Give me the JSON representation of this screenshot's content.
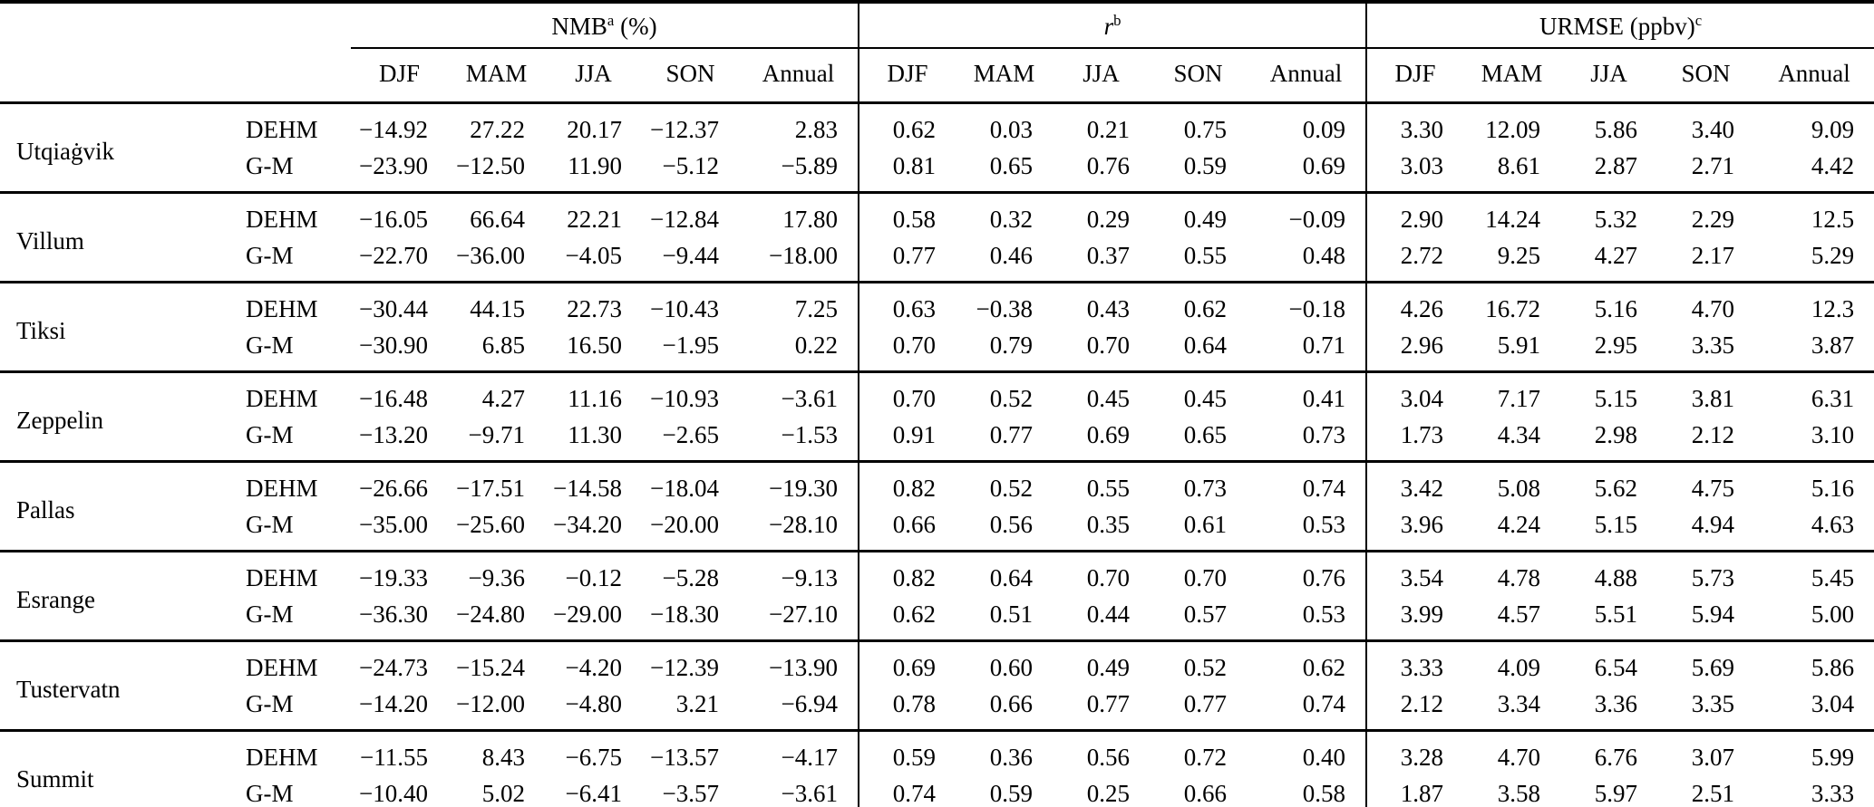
{
  "table": {
    "groups": [
      {
        "text": "NMB",
        "sup": "a",
        "suffix": " (%)"
      },
      {
        "text": "r",
        "sup": "b",
        "suffix": ""
      },
      {
        "text": "URMSE (ppbv)",
        "sup": "c",
        "suffix": ""
      }
    ],
    "seasons": [
      "DJF",
      "MAM",
      "JJA",
      "SON",
      "Annual"
    ],
    "stations": [
      {
        "name": "Utqiaġvik",
        "models": [
          {
            "name": "DEHM",
            "nmb": [
              "−14.92",
              "27.22",
              "20.17",
              "−12.37",
              "2.83"
            ],
            "r": [
              "0.62",
              "0.03",
              "0.21",
              "0.75",
              "0.09"
            ],
            "urmse": [
              "3.30",
              "12.09",
              "5.86",
              "3.40",
              "9.09"
            ]
          },
          {
            "name": "G-M",
            "nmb": [
              "−23.90",
              "−12.50",
              "11.90",
              "−5.12",
              "−5.89"
            ],
            "r": [
              "0.81",
              "0.65",
              "0.76",
              "0.59",
              "0.69"
            ],
            "urmse": [
              "3.03",
              "8.61",
              "2.87",
              "2.71",
              "4.42"
            ]
          }
        ]
      },
      {
        "name": "Villum",
        "models": [
          {
            "name": "DEHM",
            "nmb": [
              "−16.05",
              "66.64",
              "22.21",
              "−12.84",
              "17.80"
            ],
            "r": [
              "0.58",
              "0.32",
              "0.29",
              "0.49",
              "−0.09"
            ],
            "urmse": [
              "2.90",
              "14.24",
              "5.32",
              "2.29",
              "12.5"
            ]
          },
          {
            "name": "G-M",
            "nmb": [
              "−22.70",
              "−36.00",
              "−4.05",
              "−9.44",
              "−18.00"
            ],
            "r": [
              "0.77",
              "0.46",
              "0.37",
              "0.55",
              "0.48"
            ],
            "urmse": [
              "2.72",
              "9.25",
              "4.27",
              "2.17",
              "5.29"
            ]
          }
        ]
      },
      {
        "name": "Tiksi",
        "models": [
          {
            "name": "DEHM",
            "nmb": [
              "−30.44",
              "44.15",
              "22.73",
              "−10.43",
              "7.25"
            ],
            "r": [
              "0.63",
              "−0.38",
              "0.43",
              "0.62",
              "−0.18"
            ],
            "urmse": [
              "4.26",
              "16.72",
              "5.16",
              "4.70",
              "12.3"
            ]
          },
          {
            "name": "G-M",
            "nmb": [
              "−30.90",
              "6.85",
              "16.50",
              "−1.95",
              "0.22"
            ],
            "r": [
              "0.70",
              "0.79",
              "0.70",
              "0.64",
              "0.71"
            ],
            "urmse": [
              "2.96",
              "5.91",
              "2.95",
              "3.35",
              "3.87"
            ]
          }
        ]
      },
      {
        "name": "Zeppelin",
        "models": [
          {
            "name": "DEHM",
            "nmb": [
              "−16.48",
              "4.27",
              "11.16",
              "−10.93",
              "−3.61"
            ],
            "r": [
              "0.70",
              "0.52",
              "0.45",
              "0.45",
              "0.41"
            ],
            "urmse": [
              "3.04",
              "7.17",
              "5.15",
              "3.81",
              "6.31"
            ]
          },
          {
            "name": "G-M",
            "nmb": [
              "−13.20",
              "−9.71",
              "11.30",
              "−2.65",
              "−1.53"
            ],
            "r": [
              "0.91",
              "0.77",
              "0.69",
              "0.65",
              "0.73"
            ],
            "urmse": [
              "1.73",
              "4.34",
              "2.98",
              "2.12",
              "3.10"
            ]
          }
        ]
      },
      {
        "name": "Pallas",
        "models": [
          {
            "name": "DEHM",
            "nmb": [
              "−26.66",
              "−17.51",
              "−14.58",
              "−18.04",
              "−19.30"
            ],
            "r": [
              "0.82",
              "0.52",
              "0.55",
              "0.73",
              "0.74"
            ],
            "urmse": [
              "3.42",
              "5.08",
              "5.62",
              "4.75",
              "5.16"
            ]
          },
          {
            "name": "G-M",
            "nmb": [
              "−35.00",
              "−25.60",
              "−34.20",
              "−20.00",
              "−28.10"
            ],
            "r": [
              "0.66",
              "0.56",
              "0.35",
              "0.61",
              "0.53"
            ],
            "urmse": [
              "3.96",
              "4.24",
              "5.15",
              "4.94",
              "4.63"
            ]
          }
        ]
      },
      {
        "name": "Esrange",
        "models": [
          {
            "name": "DEHM",
            "nmb": [
              "−19.33",
              "−9.36",
              "−0.12",
              "−5.28",
              "−9.13"
            ],
            "r": [
              "0.82",
              "0.64",
              "0.70",
              "0.70",
              "0.76"
            ],
            "urmse": [
              "3.54",
              "4.78",
              "4.88",
              "5.73",
              "5.45"
            ]
          },
          {
            "name": "G-M",
            "nmb": [
              "−36.30",
              "−24.80",
              "−29.00",
              "−18.30",
              "−27.10"
            ],
            "r": [
              "0.62",
              "0.51",
              "0.44",
              "0.57",
              "0.53"
            ],
            "urmse": [
              "3.99",
              "4.57",
              "5.51",
              "5.94",
              "5.00"
            ]
          }
        ]
      },
      {
        "name": "Tustervatn",
        "models": [
          {
            "name": "DEHM",
            "nmb": [
              "−24.73",
              "−15.24",
              "−4.20",
              "−12.39",
              "−13.90"
            ],
            "r": [
              "0.69",
              "0.60",
              "0.49",
              "0.52",
              "0.62"
            ],
            "urmse": [
              "3.33",
              "4.09",
              "6.54",
              "5.69",
              "5.86"
            ]
          },
          {
            "name": "G-M",
            "nmb": [
              "−14.20",
              "−12.00",
              "−4.80",
              "3.21",
              "−6.94"
            ],
            "r": [
              "0.78",
              "0.66",
              "0.77",
              "0.77",
              "0.74"
            ],
            "urmse": [
              "2.12",
              "3.34",
              "3.36",
              "3.35",
              "3.04"
            ]
          }
        ]
      },
      {
        "name": "Summit",
        "models": [
          {
            "name": "DEHM",
            "nmb": [
              "−11.55",
              "8.43",
              "−6.75",
              "−13.57",
              "−4.17"
            ],
            "r": [
              "0.59",
              "0.36",
              "0.56",
              "0.72",
              "0.40"
            ],
            "urmse": [
              "3.28",
              "4.70",
              "6.76",
              "3.07",
              "5.99"
            ]
          },
          {
            "name": "G-M",
            "nmb": [
              "−10.40",
              "5.02",
              "−6.41",
              "−3.57",
              "−3.61"
            ],
            "r": [
              "0.74",
              "0.59",
              "0.25",
              "0.66",
              "0.58"
            ],
            "urmse": [
              "1.87",
              "3.58",
              "5.97",
              "2.51",
              "3.33"
            ]
          }
        ]
      }
    ]
  }
}
